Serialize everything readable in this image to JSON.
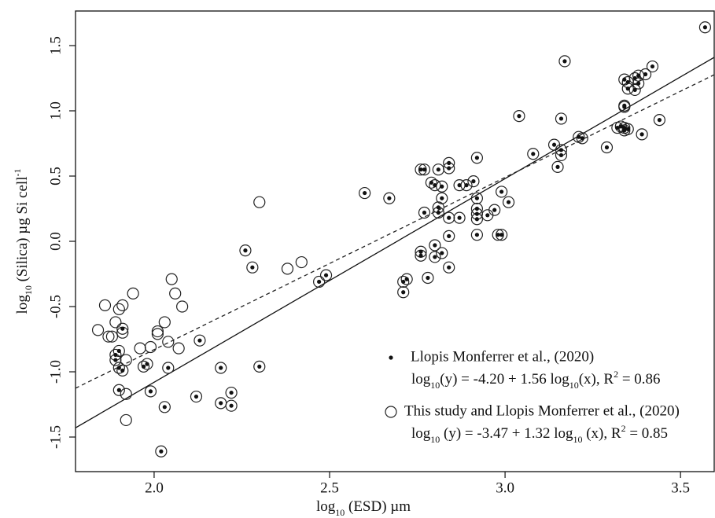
{
  "chart_data": {
    "type": "scatter",
    "xlabel": [
      [
        "log",
        "normal"
      ],
      [
        "10",
        "sub"
      ],
      [
        " (ESD) µm",
        "normal"
      ]
    ],
    "ylabel": [
      [
        "log",
        "normal"
      ],
      [
        "10",
        "sub"
      ],
      [
        " (Silica) µg Si cell",
        "normal"
      ],
      [
        "-1",
        "sup"
      ]
    ],
    "xlim": [
      1.776,
      3.596
    ],
    "ylim": [
      -1.765,
      1.765
    ],
    "xticks": [
      {
        "value": 2,
        "label": "2.0"
      },
      2.5,
      {
        "value": 3,
        "label": "3.0"
      },
      3.5
    ],
    "yticks": [
      -1.5,
      {
        "value": -1,
        "label": "-1.0"
      },
      -0.5,
      {
        "value": 0,
        "label": "0.0"
      },
      0.5,
      {
        "value": 1,
        "label": "1.0"
      },
      1.5
    ],
    "legend": "lower right",
    "series": [
      {
        "name": "Llopis Monferrer et al., (2020)",
        "marker": "dot",
        "color": "#111111",
        "line_style": "solid",
        "fit": {
          "intercept": -4.2,
          "slope": 1.56
        },
        "equation": [
          [
            "log",
            "normal"
          ],
          [
            "10",
            "sub"
          ],
          [
            "(y) = -4.20 + 1.56 log",
            "normal"
          ],
          [
            "10",
            "sub"
          ],
          [
            "(x), R",
            "normal"
          ],
          [
            "2",
            "sup"
          ],
          [
            " = 0.86",
            "normal"
          ]
        ],
        "x": [
          1.89,
          1.89,
          1.9,
          1.9,
          1.9,
          1.91,
          1.91,
          1.98,
          1.97,
          1.99,
          2.03,
          2.04,
          2.02,
          2.12,
          2.13,
          2.19,
          2.19,
          2.22,
          2.22,
          2.26,
          2.28,
          2.3,
          2.47,
          2.49,
          2.6,
          2.67,
          2.71,
          2.71,
          2.72,
          2.76,
          2.76,
          2.76,
          2.77,
          2.77,
          2.78,
          2.79,
          2.8,
          2.8,
          2.8,
          2.81,
          2.81,
          2.81,
          2.82,
          2.82,
          2.82,
          2.84,
          2.84,
          2.84,
          2.84,
          2.84,
          2.87,
          2.87,
          2.89,
          2.91,
          2.92,
          2.92,
          2.92,
          2.92,
          2.92,
          2.92,
          2.95,
          2.97,
          2.98,
          2.99,
          2.99,
          3.01,
          3.04,
          3.08,
          3.14,
          3.15,
          3.16,
          3.16,
          3.16,
          3.17,
          3.21,
          3.22,
          3.29,
          3.32,
          3.33,
          3.34,
          3.34,
          3.35,
          3.34,
          3.34,
          3.34,
          3.35,
          3.35,
          3.37,
          3.37,
          3.38,
          3.38,
          3.39,
          3.4,
          3.42,
          3.44,
          3.57
        ],
        "y": [
          -0.87,
          -0.91,
          -0.84,
          -0.97,
          -1.14,
          -0.67,
          -0.99,
          -0.94,
          -0.96,
          -1.15,
          -1.27,
          -0.97,
          -1.61,
          -1.19,
          -0.76,
          -1.24,
          -0.97,
          -1.16,
          -1.26,
          -0.07,
          -0.2,
          -0.96,
          -0.31,
          -0.26,
          0.37,
          0.33,
          -0.31,
          -0.39,
          -0.29,
          0.55,
          -0.08,
          -0.11,
          0.22,
          0.55,
          -0.28,
          0.45,
          0.43,
          -0.03,
          -0.12,
          0.55,
          0.26,
          0.22,
          0.33,
          -0.09,
          0.42,
          0.6,
          0.56,
          0.18,
          0.04,
          -0.2,
          0.43,
          0.18,
          0.43,
          0.46,
          0.64,
          0.33,
          0.25,
          0.21,
          0.17,
          0.05,
          0.2,
          0.24,
          0.05,
          0.05,
          0.38,
          0.3,
          0.96,
          0.67,
          0.74,
          0.57,
          0.7,
          0.66,
          0.94,
          1.38,
          0.8,
          0.79,
          0.72,
          0.87,
          0.88,
          0.85,
          0.87,
          0.86,
          1.03,
          1.04,
          1.24,
          1.22,
          1.17,
          1.16,
          1.25,
          1.27,
          1.21,
          0.82,
          1.28,
          1.34,
          0.93,
          1.64
        ]
      },
      {
        "name": "This study and Llopis Monferrer et al., (2020)",
        "marker": "open",
        "color": "#222222",
        "line_style": "dashed",
        "fit": {
          "intercept": -3.47,
          "slope": 1.32
        },
        "equation": [
          [
            "log",
            "normal"
          ],
          [
            "10",
            "sub"
          ],
          [
            " (y) = -3.47 + 1.32 log",
            "normal"
          ],
          [
            "10",
            "sub"
          ],
          [
            " (x), R",
            "normal"
          ],
          [
            "2",
            "sup"
          ],
          [
            "  = 0.85",
            "normal"
          ]
        ],
        "x": [
          1.84,
          1.86,
          1.87,
          1.88,
          1.89,
          1.9,
          1.91,
          1.91,
          1.92,
          1.92,
          1.92,
          1.94,
          1.96,
          1.99,
          2.01,
          2.01,
          2.03,
          2.04,
          2.05,
          2.06,
          2.07,
          2.08,
          2.3,
          2.38,
          2.42,
          1.89,
          1.89,
          1.9,
          1.9,
          1.9,
          1.91,
          1.91,
          1.98,
          1.97,
          1.99,
          2.03,
          2.04,
          2.02,
          2.12,
          2.13,
          2.19,
          2.19,
          2.22,
          2.22,
          2.26,
          2.28,
          2.3,
          2.47,
          2.49,
          2.6,
          2.67,
          2.71,
          2.71,
          2.72,
          2.76,
          2.76,
          2.76,
          2.77,
          2.77,
          2.78,
          2.79,
          2.8,
          2.8,
          2.8,
          2.81,
          2.81,
          2.81,
          2.82,
          2.82,
          2.82,
          2.84,
          2.84,
          2.84,
          2.84,
          2.84,
          2.87,
          2.87,
          2.89,
          2.91,
          2.92,
          2.92,
          2.92,
          2.92,
          2.92,
          2.92,
          2.95,
          2.97,
          2.98,
          2.99,
          2.99,
          3.01,
          3.04,
          3.08,
          3.14,
          3.15,
          3.16,
          3.16,
          3.16,
          3.17,
          3.21,
          3.22,
          3.29,
          3.32,
          3.33,
          3.34,
          3.34,
          3.35,
          3.34,
          3.34,
          3.34,
          3.35,
          3.35,
          3.37,
          3.37,
          3.38,
          3.38,
          3.39,
          3.4,
          3.42,
          3.44,
          3.57
        ],
        "y": [
          -0.68,
          -0.49,
          -0.73,
          -0.73,
          -0.62,
          -0.52,
          -0.49,
          -0.7,
          -0.91,
          -1.17,
          -1.37,
          -0.4,
          -0.82,
          -0.81,
          -0.69,
          -0.71,
          -0.62,
          -0.77,
          -0.29,
          -0.4,
          -0.82,
          -0.5,
          0.3,
          -0.21,
          -0.16,
          -0.87,
          -0.91,
          -0.84,
          -0.97,
          -1.14,
          -0.67,
          -0.99,
          -0.94,
          -0.96,
          -1.15,
          -1.27,
          -0.97,
          -1.61,
          -1.19,
          -0.76,
          -1.24,
          -0.97,
          -1.16,
          -1.26,
          -0.07,
          -0.2,
          -0.96,
          -0.31,
          -0.26,
          0.37,
          0.33,
          -0.31,
          -0.39,
          -0.29,
          0.55,
          -0.08,
          -0.11,
          0.22,
          0.55,
          -0.28,
          0.45,
          0.43,
          -0.03,
          -0.12,
          0.55,
          0.26,
          0.22,
          0.33,
          -0.09,
          0.42,
          0.6,
          0.56,
          0.18,
          0.04,
          -0.2,
          0.43,
          0.18,
          0.43,
          0.46,
          0.64,
          0.33,
          0.25,
          0.21,
          0.17,
          0.05,
          0.2,
          0.24,
          0.05,
          0.05,
          0.38,
          0.3,
          0.96,
          0.67,
          0.74,
          0.57,
          0.7,
          0.66,
          0.94,
          1.38,
          0.8,
          0.79,
          0.72,
          0.87,
          0.88,
          0.85,
          0.87,
          0.86,
          1.03,
          1.04,
          1.24,
          1.22,
          1.17,
          1.16,
          1.25,
          1.27,
          1.21,
          0.82,
          1.28,
          1.34,
          0.93,
          1.64
        ]
      }
    ]
  }
}
